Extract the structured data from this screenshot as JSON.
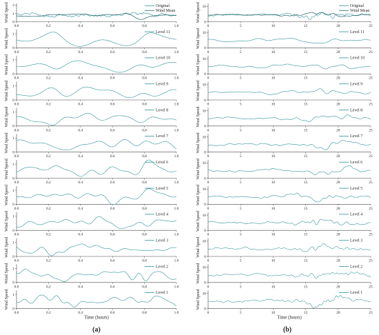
{
  "colors": {
    "series": "#2a8f97",
    "original": "#2a8f97",
    "axis": "#444444"
  },
  "panel_labels": {
    "a": "(a)",
    "b": "(b)"
  },
  "chart_data": [
    {
      "type": "line",
      "panel": "(a)",
      "xlabel": "Time (hours)",
      "ylabel": "Wind Speed",
      "xlim": [
        0.0,
        1.0
      ],
      "xticks": [
        "0.0",
        "0.2",
        "0.4",
        "0.6",
        "0.8",
        "1.0"
      ],
      "subplots": [
        {
          "legend": [
            "Original",
            "Wind Mean"
          ],
          "yticks": [
            "0",
            "1",
            "2"
          ],
          "ylim": [
            0,
            2.2
          ],
          "smooth": 0,
          "base": 0.8,
          "amp": 0.55
        },
        {
          "legend": [
            "Level 11"
          ],
          "yticks": [
            "0",
            "1"
          ],
          "ylim": [
            0,
            1.3
          ],
          "smooth": 11,
          "base": 0.5,
          "amp": 0.35
        },
        {
          "legend": [
            "Level 10"
          ],
          "yticks": [
            "0",
            "1"
          ],
          "ylim": [
            0,
            1.3
          ],
          "smooth": 10,
          "base": 0.55,
          "amp": 0.35
        },
        {
          "legend": [
            "Level 9"
          ],
          "yticks": [
            "0",
            "1"
          ],
          "ylim": [
            0,
            1.3
          ],
          "smooth": 9,
          "base": 0.55,
          "amp": 0.38
        },
        {
          "legend": [
            "Level 8"
          ],
          "yticks": [
            "0",
            "1"
          ],
          "ylim": [
            0,
            1.3
          ],
          "smooth": 8,
          "base": 0.55,
          "amp": 0.4
        },
        {
          "legend": [
            "Level 7"
          ],
          "yticks": [
            "0",
            "1"
          ],
          "ylim": [
            0,
            1.3
          ],
          "smooth": 7,
          "base": 0.55,
          "amp": 0.42
        },
        {
          "legend": [
            "Level 6"
          ],
          "yticks": [
            "0",
            "1"
          ],
          "ylim": [
            0,
            1.3
          ],
          "smooth": 6,
          "base": 0.55,
          "amp": 0.44
        },
        {
          "legend": [
            "Level 5"
          ],
          "yticks": [
            "0",
            "1"
          ],
          "ylim": [
            0,
            1.3
          ],
          "smooth": 5,
          "base": 0.55,
          "amp": 0.46
        },
        {
          "legend": [
            "Level 4"
          ],
          "yticks": [
            "0",
            "1"
          ],
          "ylim": [
            0,
            1.3
          ],
          "smooth": 4,
          "base": 0.55,
          "amp": 0.48
        },
        {
          "legend": [
            "Level 3"
          ],
          "yticks": [
            "0",
            "1"
          ],
          "ylim": [
            0,
            1.3
          ],
          "smooth": 3,
          "base": 0.55,
          "amp": 0.5
        },
        {
          "legend": [
            "Level 2"
          ],
          "yticks": [
            "0",
            "1"
          ],
          "ylim": [
            0,
            1.3
          ],
          "smooth": 2,
          "base": 0.55,
          "amp": 0.52
        },
        {
          "legend": [
            "Level 1"
          ],
          "yticks": [
            "0",
            "1"
          ],
          "ylim": [
            0,
            1.3
          ],
          "smooth": 1,
          "base": 0.55,
          "amp": 0.54
        }
      ]
    },
    {
      "type": "line",
      "panel": "(b)",
      "xlabel": "Time (hours)",
      "ylabel": "Wind Speed",
      "xlim": [
        0,
        25
      ],
      "xticks": [
        "0",
        "5",
        "10",
        "15",
        "20",
        "25"
      ],
      "subplots": [
        {
          "legend": [
            "Original",
            "Wind Mean"
          ],
          "yticks": [
            "0",
            "10"
          ],
          "ylim": [
            0,
            12
          ],
          "smooth": 0,
          "base": 4.5,
          "amp": 3.5
        },
        {
          "legend": [
            "Level 11"
          ],
          "yticks": [
            "0",
            "10"
          ],
          "ylim": [
            0,
            12
          ],
          "smooth": 11,
          "base": 5,
          "amp": 2.2
        },
        {
          "legend": [
            "Level 10"
          ],
          "yticks": [
            "0",
            "10"
          ],
          "ylim": [
            0,
            12
          ],
          "smooth": 10,
          "base": 5,
          "amp": 2.4
        },
        {
          "legend": [
            "Level 9"
          ],
          "yticks": [
            "0",
            "10"
          ],
          "ylim": [
            0,
            12
          ],
          "smooth": 9,
          "base": 5,
          "amp": 2.6
        },
        {
          "legend": [
            "Level 8"
          ],
          "yticks": [
            "0",
            "10"
          ],
          "ylim": [
            0,
            12
          ],
          "smooth": 8,
          "base": 5,
          "amp": 2.8
        },
        {
          "legend": [
            "Level 7"
          ],
          "yticks": [
            "0",
            "10"
          ],
          "ylim": [
            0,
            12
          ],
          "smooth": 7,
          "base": 5,
          "amp": 3.0
        },
        {
          "legend": [
            "Level 6"
          ],
          "yticks": [
            "0",
            "10"
          ],
          "ylim": [
            0,
            12
          ],
          "smooth": 6,
          "base": 5,
          "amp": 3.2
        },
        {
          "legend": [
            "Level 5"
          ],
          "yticks": [
            "0",
            "10"
          ],
          "ylim": [
            0,
            12
          ],
          "smooth": 5,
          "base": 5,
          "amp": 3.4
        },
        {
          "legend": [
            "Level 4"
          ],
          "yticks": [
            "0",
            "10"
          ],
          "ylim": [
            0,
            12
          ],
          "smooth": 4,
          "base": 5,
          "amp": 3.6
        },
        {
          "legend": [
            "Level 3"
          ],
          "yticks": [
            "0",
            "10"
          ],
          "ylim": [
            0,
            12
          ],
          "smooth": 3,
          "base": 5,
          "amp": 3.8
        },
        {
          "legend": [
            "Level 2"
          ],
          "yticks": [
            "0",
            "10"
          ],
          "ylim": [
            0,
            12
          ],
          "smooth": 2,
          "base": 5,
          "amp": 4.0
        },
        {
          "legend": [
            "Level 1"
          ],
          "yticks": [
            "0",
            "10"
          ],
          "ylim": [
            0,
            12
          ],
          "smooth": 1,
          "base": 5,
          "amp": 4.2
        }
      ]
    }
  ]
}
